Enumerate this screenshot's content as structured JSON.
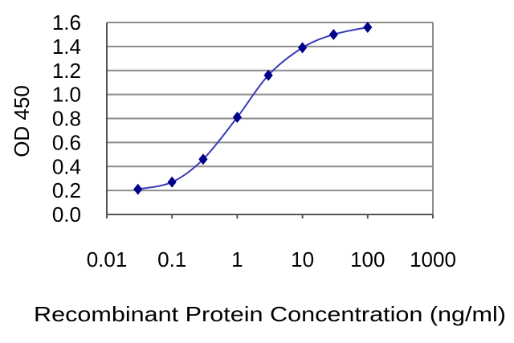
{
  "chart_data": {
    "type": "scatter",
    "title": "",
    "xlabel": "Recombinant Protein Concentration (ng/ml)",
    "ylabel": "OD 450",
    "xscale": "log",
    "xlim": [
      0.01,
      1000
    ],
    "ylim": [
      0.0,
      1.6
    ],
    "x_ticks": [
      "0.01",
      "0.1",
      "1",
      "10",
      "100",
      "1000"
    ],
    "y_ticks": [
      "0.0",
      "0.2",
      "0.4",
      "0.6",
      "0.8",
      "1.0",
      "1.2",
      "1.4",
      "1.6"
    ],
    "grid": "horizontal",
    "legend": "none",
    "series": [
      {
        "x": [
          0.03,
          0.1,
          0.3,
          1,
          3,
          10,
          30,
          100
        ],
        "y": [
          0.21,
          0.27,
          0.46,
          0.81,
          1.16,
          1.39,
          1.5,
          1.56
        ],
        "fit": "sigmoid",
        "color": "#00008B"
      }
    ],
    "grid_color": "#8c8c8c"
  }
}
